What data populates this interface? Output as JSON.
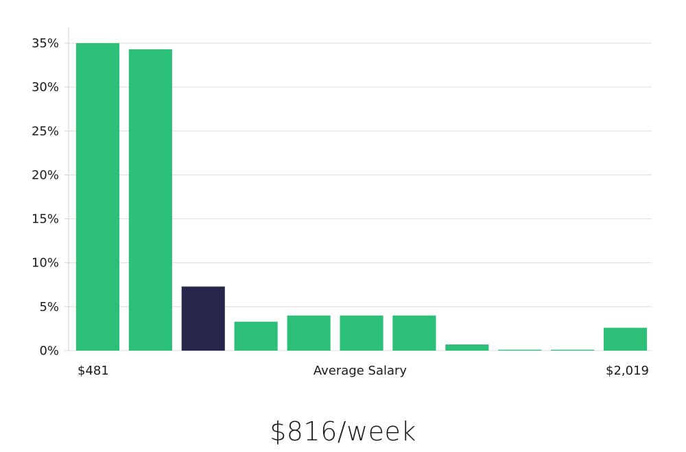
{
  "chart_data": {
    "type": "bar",
    "values": [
      35,
      34.3,
      7.3,
      3.3,
      4.0,
      4.0,
      4.0,
      0.7,
      0.1,
      0.1,
      2.6
    ],
    "highlight_index": 2,
    "ylim": [
      0,
      35
    ],
    "y_ticks": [
      "0%",
      "5%",
      "10%",
      "15%",
      "20%",
      "25%",
      "30%",
      "35%"
    ],
    "x_min_label": "$481",
    "x_max_label": "$2,019",
    "xlabel": "Average Salary",
    "grid": true,
    "colors": {
      "bar": "#2bbf77",
      "highlight": "#27254a"
    }
  },
  "summary": {
    "average_salary": "$816/week"
  }
}
